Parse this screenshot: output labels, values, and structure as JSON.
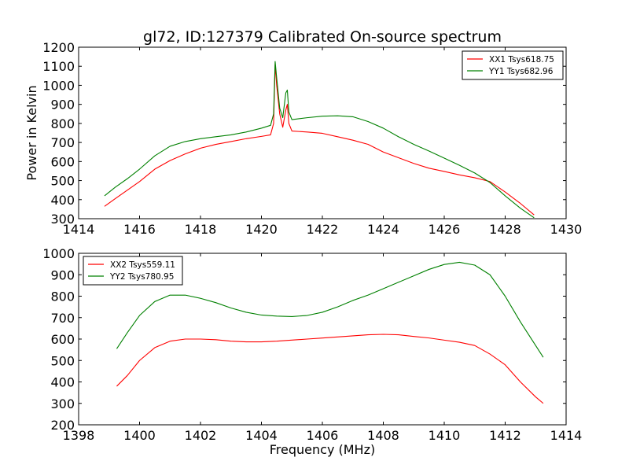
{
  "chart_data": [
    {
      "type": "line",
      "title": "gl72, ID:127379 Calibrated On-source spectrum",
      "xlabel": "",
      "ylabel": "Power in Kelvin",
      "xlim": [
        1414,
        1430
      ],
      "ylim": [
        300,
        1200
      ],
      "xticks": [
        "1414",
        "1416",
        "1418",
        "1420",
        "1422",
        "1424",
        "1426",
        "1428",
        "1430"
      ],
      "yticks": [
        "300",
        "400",
        "500",
        "600",
        "700",
        "800",
        "900",
        "1000",
        "1100",
        "1200"
      ],
      "grid": false,
      "legend_position": "top-right",
      "series": [
        {
          "name": "XX1 Tsys618.75",
          "color": "#ff0000",
          "points": [
            [
              1414.85,
              365
            ],
            [
              1415.2,
              405
            ],
            [
              1415.6,
              450
            ],
            [
              1416,
              495
            ],
            [
              1416.5,
              560
            ],
            [
              1417,
              605
            ],
            [
              1417.5,
              640
            ],
            [
              1418,
              670
            ],
            [
              1418.5,
              690
            ],
            [
              1419,
              705
            ],
            [
              1419.5,
              720
            ],
            [
              1420,
              732
            ],
            [
              1420.3,
              740
            ],
            [
              1420.4,
              800
            ],
            [
              1420.45,
              1110
            ],
            [
              1420.5,
              1000
            ],
            [
              1420.6,
              850
            ],
            [
              1420.7,
              780
            ],
            [
              1420.8,
              870
            ],
            [
              1420.85,
              900
            ],
            [
              1420.9,
              800
            ],
            [
              1421,
              760
            ],
            [
              1421.5,
              755
            ],
            [
              1422,
              748
            ],
            [
              1422.5,
              730
            ],
            [
              1423,
              712
            ],
            [
              1423.5,
              690
            ],
            [
              1424,
              650
            ],
            [
              1424.5,
              620
            ],
            [
              1425,
              590
            ],
            [
              1425.5,
              565
            ],
            [
              1426,
              548
            ],
            [
              1426.5,
              530
            ],
            [
              1427,
              515
            ],
            [
              1427.5,
              495
            ],
            [
              1428,
              440
            ],
            [
              1428.5,
              380
            ],
            [
              1428.95,
              320
            ]
          ]
        },
        {
          "name": "YY1 Tsys682.96",
          "color": "#008000",
          "points": [
            [
              1414.85,
              420
            ],
            [
              1415.2,
              465
            ],
            [
              1415.6,
              510
            ],
            [
              1416,
              560
            ],
            [
              1416.5,
              630
            ],
            [
              1417,
              680
            ],
            [
              1417.5,
              705
            ],
            [
              1418,
              720
            ],
            [
              1418.5,
              730
            ],
            [
              1419,
              740
            ],
            [
              1419.5,
              755
            ],
            [
              1420,
              775
            ],
            [
              1420.3,
              790
            ],
            [
              1420.4,
              850
            ],
            [
              1420.45,
              1125
            ],
            [
              1420.5,
              1040
            ],
            [
              1420.6,
              880
            ],
            [
              1420.7,
              830
            ],
            [
              1420.8,
              960
            ],
            [
              1420.85,
              975
            ],
            [
              1420.9,
              860
            ],
            [
              1421,
              820
            ],
            [
              1421.5,
              830
            ],
            [
              1422,
              838
            ],
            [
              1422.5,
              840
            ],
            [
              1423,
              835
            ],
            [
              1423.5,
              810
            ],
            [
              1424,
              775
            ],
            [
              1424.5,
              730
            ],
            [
              1425,
              690
            ],
            [
              1425.5,
              655
            ],
            [
              1426,
              618
            ],
            [
              1426.5,
              580
            ],
            [
              1427,
              540
            ],
            [
              1427.5,
              490
            ],
            [
              1428,
              420
            ],
            [
              1428.5,
              355
            ],
            [
              1428.95,
              305
            ]
          ]
        }
      ]
    },
    {
      "type": "line",
      "title": "",
      "xlabel": "Frequency (MHz)",
      "ylabel": "",
      "xlim": [
        1398,
        1414
      ],
      "ylim": [
        200,
        1000
      ],
      "xticks": [
        "1398",
        "1400",
        "1402",
        "1404",
        "1406",
        "1408",
        "1410",
        "1412",
        "1414"
      ],
      "yticks": [
        "200",
        "300",
        "400",
        "500",
        "600",
        "700",
        "800",
        "900",
        "1000"
      ],
      "grid": false,
      "legend_position": "top-left",
      "series": [
        {
          "name": "XX2 Tsys559.11",
          "color": "#ff0000",
          "points": [
            [
              1399.25,
              380
            ],
            [
              1399.6,
              430
            ],
            [
              1400,
              500
            ],
            [
              1400.5,
              560
            ],
            [
              1401,
              590
            ],
            [
              1401.5,
              600
            ],
            [
              1402,
              600
            ],
            [
              1402.5,
              597
            ],
            [
              1403,
              590
            ],
            [
              1403.5,
              587
            ],
            [
              1404,
              587
            ],
            [
              1404.5,
              590
            ],
            [
              1405,
              595
            ],
            [
              1405.5,
              600
            ],
            [
              1406,
              605
            ],
            [
              1406.5,
              610
            ],
            [
              1407,
              615
            ],
            [
              1407.5,
              620
            ],
            [
              1408,
              622
            ],
            [
              1408.5,
              620
            ],
            [
              1409,
              612
            ],
            [
              1409.5,
              605
            ],
            [
              1410,
              595
            ],
            [
              1410.5,
              585
            ],
            [
              1411,
              570
            ],
            [
              1411.5,
              530
            ],
            [
              1412,
              480
            ],
            [
              1412.5,
              400
            ],
            [
              1413,
              330
            ],
            [
              1413.25,
              300
            ]
          ]
        },
        {
          "name": "YY2 Tsys780.95",
          "color": "#008000",
          "points": [
            [
              1399.25,
              555
            ],
            [
              1399.6,
              630
            ],
            [
              1400,
              710
            ],
            [
              1400.5,
              775
            ],
            [
              1401,
              805
            ],
            [
              1401.5,
              805
            ],
            [
              1402,
              790
            ],
            [
              1402.5,
              770
            ],
            [
              1403,
              745
            ],
            [
              1403.5,
              725
            ],
            [
              1404,
              712
            ],
            [
              1404.5,
              707
            ],
            [
              1405,
              705
            ],
            [
              1405.5,
              710
            ],
            [
              1406,
              725
            ],
            [
              1406.5,
              750
            ],
            [
              1407,
              780
            ],
            [
              1407.5,
              805
            ],
            [
              1408,
              835
            ],
            [
              1408.5,
              865
            ],
            [
              1409,
              895
            ],
            [
              1409.5,
              925
            ],
            [
              1410,
              948
            ],
            [
              1410.5,
              958
            ],
            [
              1411,
              945
            ],
            [
              1411.5,
              900
            ],
            [
              1412,
              800
            ],
            [
              1412.5,
              680
            ],
            [
              1413,
              570
            ],
            [
              1413.25,
              515
            ]
          ]
        }
      ]
    }
  ]
}
